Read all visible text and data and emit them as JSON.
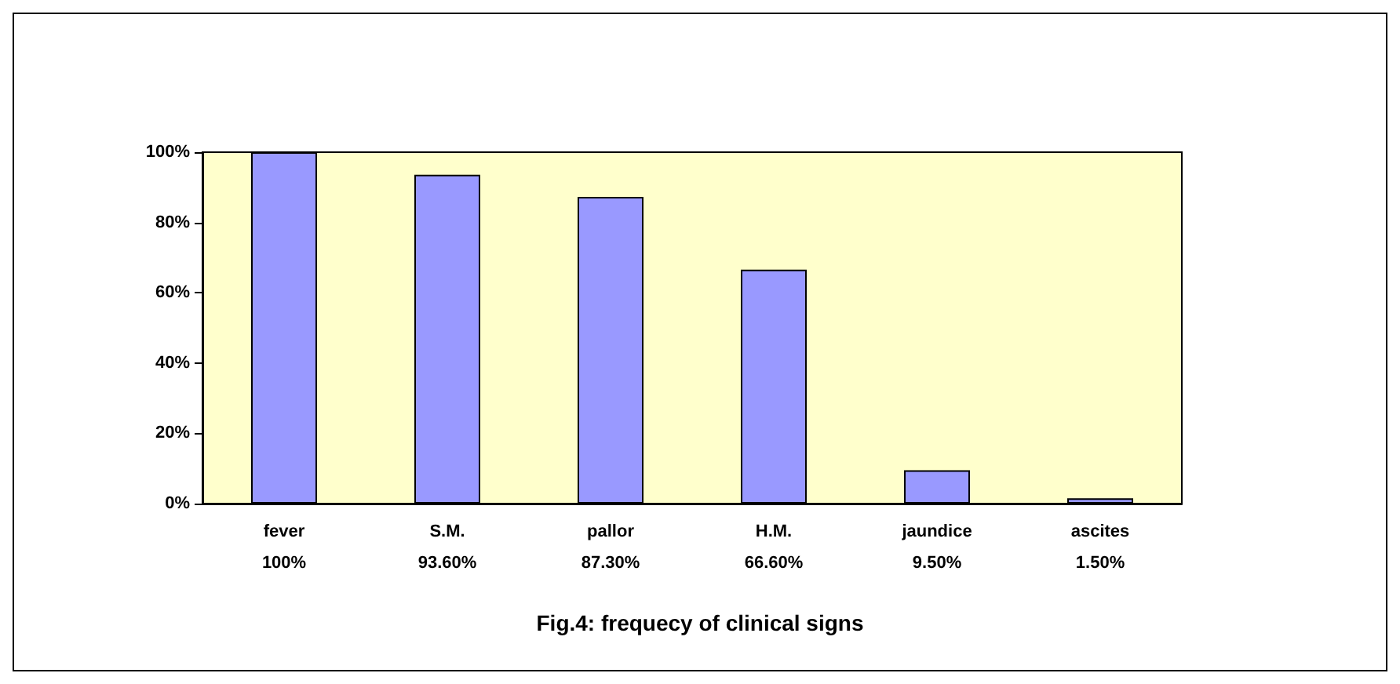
{
  "chart_data": {
    "type": "bar",
    "title": "Fig.4: frequecy of clinical signs",
    "categories": [
      "fever",
      "S.M.",
      "pallor",
      "H.M.",
      "jaundice",
      "ascites"
    ],
    "values": [
      100,
      93.6,
      87.3,
      66.6,
      9.5,
      1.5
    ],
    "value_labels": [
      "100%",
      "93.60%",
      "87.30%",
      "66.60%",
      "9.50%",
      "1.50%"
    ],
    "color": "#9999ff",
    "ylim": [
      0,
      100
    ],
    "yticks": [
      {
        "value": 0,
        "label": "0%"
      },
      {
        "value": 20,
        "label": "20%"
      },
      {
        "value": 40,
        "label": "40%"
      },
      {
        "value": 60,
        "label": "60%"
      },
      {
        "value": 80,
        "label": "80%"
      },
      {
        "value": 100,
        "label": "100%"
      }
    ],
    "grid": false
  }
}
